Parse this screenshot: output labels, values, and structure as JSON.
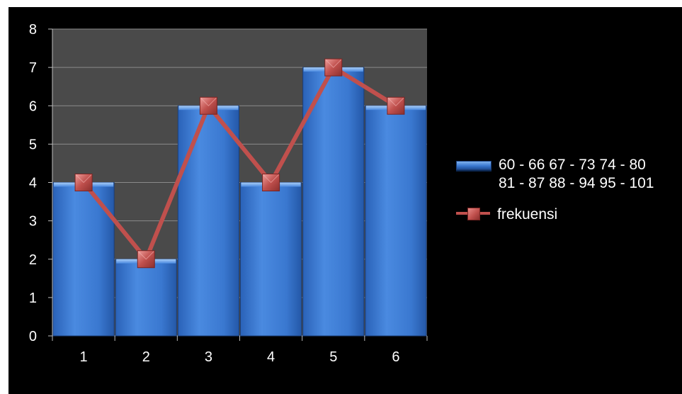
{
  "colors": {
    "background": "#000000",
    "plot_area": "#4a4a4a",
    "bar_fill": "#3a78d0",
    "line": "#c0504d",
    "text": "#ffffff"
  },
  "chart_data": {
    "type": "bar",
    "categories": [
      "1",
      "2",
      "3",
      "4",
      "5",
      "6"
    ],
    "series": [
      {
        "name": "60 - 66 67 - 73 74 - 80 81 - 87 88 - 94 95 - 101",
        "type": "bar",
        "values": [
          4,
          2,
          6,
          4,
          7,
          6
        ]
      },
      {
        "name": "frekuensi",
        "type": "line",
        "values": [
          4,
          2,
          6,
          4,
          7,
          6
        ]
      }
    ],
    "ylim": [
      0,
      8
    ],
    "yticks": [
      "0",
      "1",
      "2",
      "3",
      "4",
      "5",
      "6",
      "7",
      "8"
    ],
    "grid": true,
    "legend_position": "right",
    "legend_entries": [
      {
        "label": "60 - 66 67 - 73 74 - 80\n81 - 87 88 - 94 95 - 101",
        "marker": "bar"
      },
      {
        "label": "frekuensi",
        "marker": "line"
      }
    ]
  }
}
